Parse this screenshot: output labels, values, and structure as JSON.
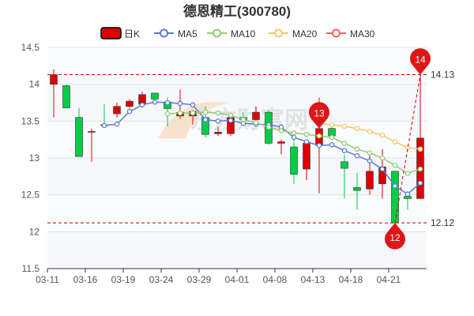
{
  "chart_data": {
    "type": "candlestick",
    "title": "德恩精工(300780)",
    "ylim": [
      11.5,
      14.5
    ],
    "yticks": [
      11.5,
      12,
      12.5,
      13,
      13.5,
      14,
      14.5
    ],
    "ytick_labels": [
      "11.5",
      "12",
      "12.5",
      "13",
      "13.5",
      "14",
      "14.5"
    ],
    "xtick_labels": [
      "03-11",
      "03-16",
      "03-19",
      "03-24",
      "03-29",
      "04-01",
      "04-08",
      "04-13",
      "04-18",
      "04-21"
    ],
    "legend": {
      "kline_label": "日K",
      "items": [
        {
          "name": "MA5",
          "color": "#5b7bd5"
        },
        {
          "name": "MA10",
          "color": "#91cc75"
        },
        {
          "name": "MA20",
          "color": "#f5c76b"
        },
        {
          "name": "MA30",
          "color": "#ee6666"
        }
      ]
    },
    "colors": {
      "up": "#dd0000",
      "down": "#00cc44"
    },
    "candles": [
      {
        "o": 14.0,
        "c": 14.13,
        "l": 13.55,
        "h": 14.2
      },
      {
        "o": 13.98,
        "c": 13.68,
        "l": 13.68,
        "h": 14.0
      },
      {
        "o": 13.55,
        "c": 13.02,
        "l": 13.02,
        "h": 13.68
      },
      {
        "o": 13.35,
        "c": 13.36,
        "l": 12.95,
        "h": 13.4
      },
      {
        "o": 13.45,
        "c": 13.44,
        "l": 13.45,
        "h": 13.73
      },
      {
        "o": 13.6,
        "c": 13.7,
        "l": 13.55,
        "h": 13.75
      },
      {
        "o": 13.7,
        "c": 13.77,
        "l": 13.67,
        "h": 13.8
      },
      {
        "o": 13.73,
        "c": 13.86,
        "l": 13.72,
        "h": 13.9
      },
      {
        "o": 13.88,
        "c": 13.8,
        "l": 13.78,
        "h": 13.88
      },
      {
        "o": 13.76,
        "c": 13.67,
        "l": 13.43,
        "h": 13.82
      },
      {
        "o": 13.57,
        "c": 13.62,
        "l": 13.53,
        "h": 13.93
      },
      {
        "o": 13.57,
        "c": 13.63,
        "l": 13.45,
        "h": 13.65
      },
      {
        "o": 13.55,
        "c": 13.32,
        "l": 13.28,
        "h": 13.7
      },
      {
        "o": 13.33,
        "c": 13.35,
        "l": 13.3,
        "h": 13.42
      },
      {
        "o": 13.33,
        "c": 13.55,
        "l": 13.3,
        "h": 13.58
      },
      {
        "o": 13.55,
        "c": 13.52,
        "l": 13.48,
        "h": 13.62
      },
      {
        "o": 13.52,
        "c": 13.62,
        "l": 13.5,
        "h": 13.7
      },
      {
        "o": 13.62,
        "c": 13.2,
        "l": 13.18,
        "h": 13.65
      },
      {
        "o": 13.2,
        "c": 13.22,
        "l": 13.05,
        "h": 13.25
      },
      {
        "o": 13.15,
        "c": 12.78,
        "l": 12.65,
        "h": 13.25
      },
      {
        "o": 12.85,
        "c": 13.2,
        "l": 12.7,
        "h": 13.25
      },
      {
        "o": 13.17,
        "c": 13.4,
        "l": 12.52,
        "h": 13.82
      },
      {
        "o": 13.4,
        "c": 13.3,
        "l": 13.28,
        "h": 13.44
      },
      {
        "o": 12.95,
        "c": 12.86,
        "l": 12.45,
        "h": 13.05
      },
      {
        "o": 12.6,
        "c": 12.56,
        "l": 12.3,
        "h": 12.8
      },
      {
        "o": 12.58,
        "c": 12.82,
        "l": 12.5,
        "h": 13.05
      },
      {
        "o": 12.65,
        "c": 12.88,
        "l": 12.45,
        "h": 13.12
      },
      {
        "o": 12.82,
        "c": 12.12,
        "l": 12.12,
        "h": 12.82
      },
      {
        "o": 12.48,
        "c": 12.45,
        "l": 12.3,
        "h": 12.55
      },
      {
        "o": 12.45,
        "c": 13.27,
        "l": 12.45,
        "h": 14.13
      }
    ],
    "ma5": [
      null,
      null,
      null,
      null,
      13.44,
      13.46,
      13.63,
      13.72,
      13.76,
      13.75,
      13.74,
      13.72,
      13.52,
      13.5,
      13.51,
      13.47,
      13.46,
      13.45,
      13.42,
      13.28,
      13.22,
      13.17,
      13.18,
      13.1,
      13.03,
      12.96,
      12.85,
      12.62,
      12.51,
      12.66
    ],
    "ma10": [
      null,
      null,
      null,
      null,
      null,
      null,
      null,
      null,
      null,
      13.6,
      13.61,
      13.61,
      13.62,
      13.61,
      13.58,
      13.52,
      13.48,
      13.42,
      13.37,
      13.34,
      13.32,
      13.3,
      13.28,
      13.2,
      13.12,
      13.07,
      13.0,
      12.9,
      12.79,
      12.85
    ],
    "ma20": [
      null,
      null,
      null,
      null,
      null,
      null,
      null,
      null,
      null,
      null,
      null,
      null,
      null,
      null,
      null,
      null,
      null,
      null,
      null,
      null,
      null,
      13.47,
      13.45,
      13.43,
      13.4,
      13.36,
      13.31,
      13.22,
      13.14,
      13.12
    ],
    "ma30": [
      null,
      null,
      null,
      null,
      null,
      null,
      null,
      null,
      null,
      null,
      null,
      null,
      null,
      null,
      null,
      null,
      null,
      null,
      null,
      null,
      null,
      null,
      null,
      null,
      null,
      null,
      null,
      null,
      null,
      null
    ],
    "ref_lines": [
      {
        "value": 14.13,
        "label": "14.13"
      },
      {
        "value": 12.12,
        "label": "12.12"
      }
    ],
    "markers": [
      {
        "index": 29,
        "value": 14.13,
        "label": "14",
        "pointing": "down"
      },
      {
        "index": 21,
        "value": 13.4,
        "label": "13",
        "pointing": "down"
      },
      {
        "index": 27,
        "value": 12.12,
        "label": "12",
        "pointing": "up"
      }
    ],
    "xtick_indices": [
      0,
      3,
      6,
      9,
      12,
      15,
      18,
      21,
      24,
      27
    ],
    "watermark": "东方财富网"
  }
}
